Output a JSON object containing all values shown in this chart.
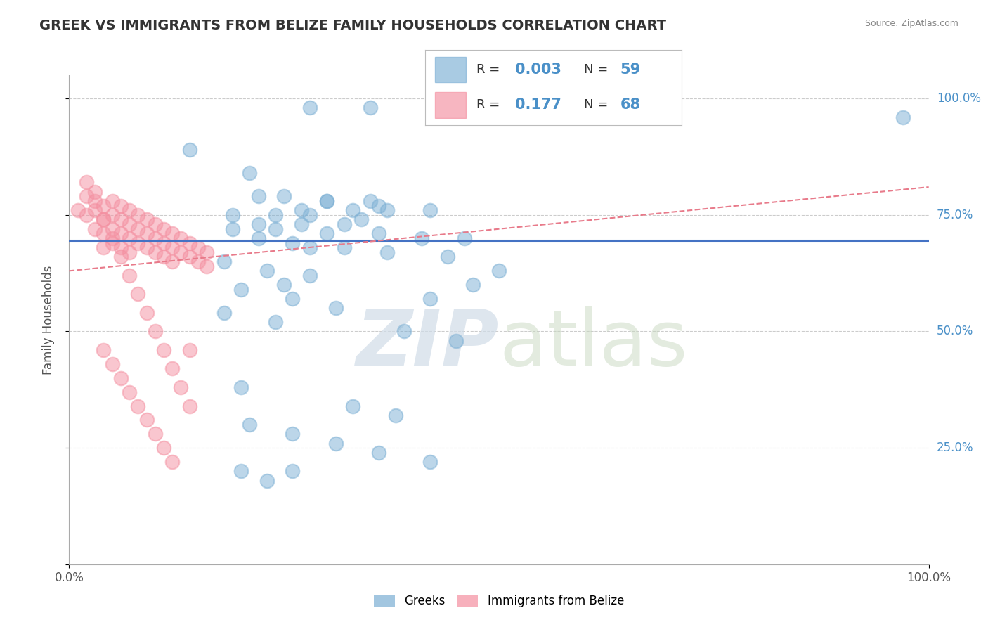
{
  "title": "GREEK VS IMMIGRANTS FROM BELIZE FAMILY HOUSEHOLDS CORRELATION CHART",
  "source": "Source: ZipAtlas.com",
  "ylabel": "Family Households",
  "watermark": "ZIPatlas",
  "blue_scatter_x": [
    0.28,
    0.35,
    0.14,
    0.21,
    0.22,
    0.25,
    0.3,
    0.35,
    0.27,
    0.33,
    0.37,
    0.42,
    0.19,
    0.24,
    0.28,
    0.34,
    0.22,
    0.27,
    0.32,
    0.19,
    0.24,
    0.3,
    0.36,
    0.41,
    0.22,
    0.26,
    0.32,
    0.28,
    0.37,
    0.44,
    0.18,
    0.23,
    0.28,
    0.25,
    0.2,
    0.26,
    0.31,
    0.18,
    0.24,
    0.39,
    0.45,
    0.5,
    0.47,
    0.2,
    0.42,
    0.33,
    0.38,
    0.21,
    0.26,
    0.31,
    0.36,
    0.42,
    0.2,
    0.26,
    0.23,
    0.3,
    0.36,
    0.97,
    0.46
  ],
  "blue_scatter_y": [
    0.98,
    0.98,
    0.89,
    0.84,
    0.79,
    0.79,
    0.78,
    0.78,
    0.76,
    0.76,
    0.76,
    0.76,
    0.75,
    0.75,
    0.75,
    0.74,
    0.73,
    0.73,
    0.73,
    0.72,
    0.72,
    0.71,
    0.71,
    0.7,
    0.7,
    0.69,
    0.68,
    0.68,
    0.67,
    0.66,
    0.65,
    0.63,
    0.62,
    0.6,
    0.59,
    0.57,
    0.55,
    0.54,
    0.52,
    0.5,
    0.48,
    0.63,
    0.6,
    0.38,
    0.57,
    0.34,
    0.32,
    0.3,
    0.28,
    0.26,
    0.24,
    0.22,
    0.2,
    0.2,
    0.18,
    0.78,
    0.77,
    0.96,
    0.7
  ],
  "pink_scatter_x": [
    0.01,
    0.02,
    0.02,
    0.03,
    0.03,
    0.03,
    0.04,
    0.04,
    0.04,
    0.04,
    0.05,
    0.05,
    0.05,
    0.05,
    0.06,
    0.06,
    0.06,
    0.06,
    0.07,
    0.07,
    0.07,
    0.07,
    0.08,
    0.08,
    0.08,
    0.09,
    0.09,
    0.09,
    0.1,
    0.1,
    0.1,
    0.11,
    0.11,
    0.11,
    0.12,
    0.12,
    0.12,
    0.13,
    0.13,
    0.14,
    0.14,
    0.15,
    0.15,
    0.16,
    0.16,
    0.02,
    0.03,
    0.04,
    0.05,
    0.06,
    0.07,
    0.08,
    0.09,
    0.1,
    0.11,
    0.12,
    0.13,
    0.14,
    0.04,
    0.05,
    0.06,
    0.07,
    0.08,
    0.09,
    0.1,
    0.11,
    0.12,
    0.14
  ],
  "pink_scatter_y": [
    0.76,
    0.75,
    0.79,
    0.76,
    0.72,
    0.8,
    0.77,
    0.74,
    0.71,
    0.68,
    0.78,
    0.75,
    0.72,
    0.69,
    0.77,
    0.74,
    0.71,
    0.68,
    0.76,
    0.73,
    0.7,
    0.67,
    0.75,
    0.72,
    0.69,
    0.74,
    0.71,
    0.68,
    0.73,
    0.7,
    0.67,
    0.72,
    0.69,
    0.66,
    0.71,
    0.68,
    0.65,
    0.7,
    0.67,
    0.69,
    0.66,
    0.68,
    0.65,
    0.67,
    0.64,
    0.82,
    0.78,
    0.74,
    0.7,
    0.66,
    0.62,
    0.58,
    0.54,
    0.5,
    0.46,
    0.42,
    0.38,
    0.34,
    0.46,
    0.43,
    0.4,
    0.37,
    0.34,
    0.31,
    0.28,
    0.25,
    0.22,
    0.46
  ],
  "blue_line_x": [
    0.0,
    1.0
  ],
  "blue_line_y": [
    0.695,
    0.695
  ],
  "pink_line_x": [
    0.0,
    1.0
  ],
  "pink_line_y": [
    0.63,
    0.81
  ],
  "xlim": [
    0.0,
    1.0
  ],
  "ylim": [
    0.0,
    1.05
  ],
  "background_color": "#ffffff",
  "grid_color": "#cccccc",
  "title_color": "#333333",
  "blue_color": "#7bafd4",
  "pink_color": "#f48fa0",
  "blue_line_color": "#4472c4",
  "pink_line_color": "#e87a8a",
  "watermark_color": "#d0dce8",
  "legend_R_color": "#4a90c8",
  "legend_N_color": "#4a90c8",
  "legend_label_color": "#333333",
  "source_color": "#888888"
}
